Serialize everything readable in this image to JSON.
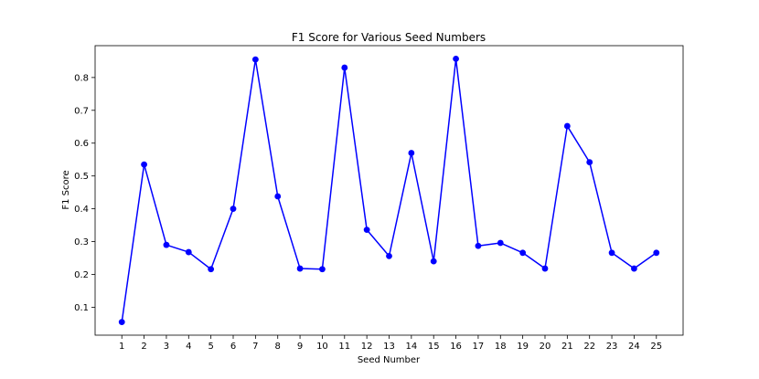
{
  "chart_data": {
    "type": "line",
    "title": "F1 Score for Various Seed Numbers",
    "xlabel": "Seed Number",
    "ylabel": "F1 Score",
    "x": [
      1,
      2,
      3,
      4,
      5,
      6,
      7,
      8,
      9,
      10,
      11,
      12,
      13,
      14,
      15,
      16,
      17,
      18,
      19,
      20,
      21,
      22,
      23,
      24,
      25
    ],
    "series": [
      {
        "values": [
          0.055,
          0.535,
          0.29,
          0.268,
          0.216,
          0.4,
          0.855,
          0.438,
          0.218,
          0.216,
          0.83,
          0.336,
          0.256,
          0.57,
          0.24,
          0.857,
          0.287,
          0.296,
          0.266,
          0.218,
          0.652,
          0.542,
          0.266,
          0.218,
          0.266
        ],
        "color": "#0000ff",
        "marker": "circle"
      }
    ],
    "xticks": [
      "1",
      "2",
      "3",
      "4",
      "5",
      "6",
      "7",
      "8",
      "9",
      "10",
      "11",
      "12",
      "13",
      "14",
      "15",
      "16",
      "17",
      "18",
      "19",
      "20",
      "21",
      "22",
      "23",
      "24",
      "25"
    ],
    "yticks": [
      "0.1",
      "0.2",
      "0.3",
      "0.4",
      "0.5",
      "0.6",
      "0.7",
      "0.8"
    ],
    "ytick_values": [
      0.1,
      0.2,
      0.3,
      0.4,
      0.5,
      0.6,
      0.7,
      0.8
    ],
    "ylim": [
      0.015,
      0.897
    ],
    "xlim": [
      -0.2,
      26.2
    ],
    "grid": false,
    "legend": "none"
  }
}
